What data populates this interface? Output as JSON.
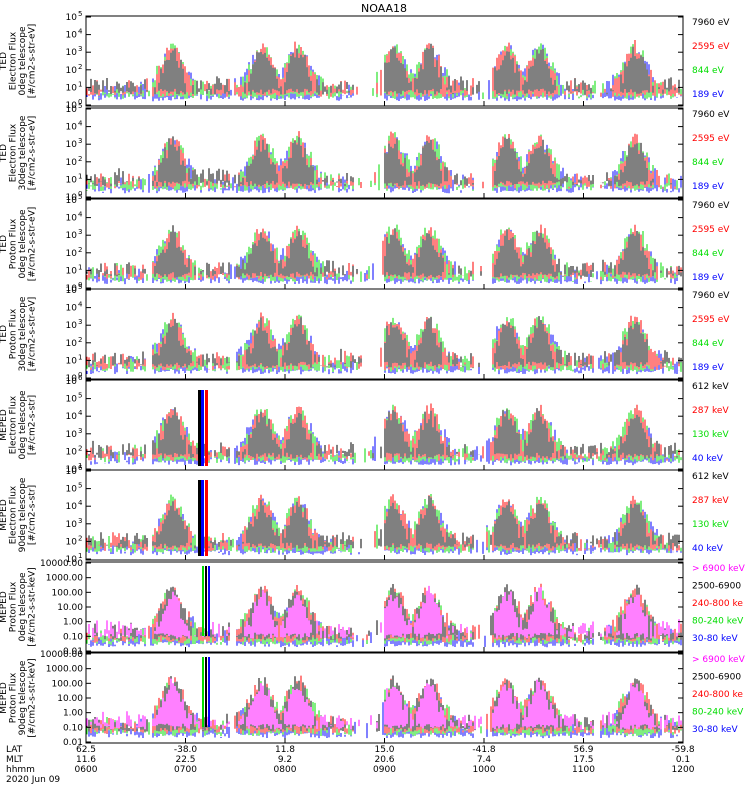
{
  "title": "NOAA18",
  "colors": {
    "black": "#000000",
    "blue": "#0000ff",
    "red": "#ff0000",
    "green": "#00dd00",
    "magenta": "#ff00ff"
  },
  "x_axis": {
    "rows": [
      {
        "label": "LAT",
        "ticks": [
          "62.5",
          "-38.0",
          "11.8",
          "15.0",
          "-41.8",
          "56.9",
          "-59.8"
        ]
      },
      {
        "label": "MLT",
        "ticks": [
          "11.6",
          "22.5",
          "9.2",
          "20.6",
          "7.4",
          "17.5",
          "0.1"
        ]
      },
      {
        "label": "hhmm",
        "ticks": [
          "0600",
          "0700",
          "0800",
          "0900",
          "1000",
          "1100",
          "1200"
        ]
      }
    ],
    "date": "2020 Jun 09"
  },
  "chart_data": [
    {
      "type": "line",
      "ylabel": [
        "TED",
        "Electron Flux",
        "0deg telescope",
        "[#/cm2-s-str-eV]"
      ],
      "yscale": "log",
      "ylim": [
        1,
        100000
      ],
      "yticks": [
        "10",
        "10",
        "10",
        "10",
        "10",
        "10"
      ],
      "yexp": [
        "0",
        "1",
        "2",
        "3",
        "4",
        "5"
      ],
      "legend": [
        {
          "text": "7960 eV",
          "color": "#000000"
        },
        {
          "text": "2595 eV",
          "color": "#ff0000"
        },
        {
          "text": "844 eV",
          "color": "#00dd00"
        },
        {
          "text": "189 eV",
          "color": "#0000ff"
        }
      ]
    },
    {
      "type": "line",
      "ylabel": [
        "TED",
        "Electron Flux",
        "30deg telescope",
        "[#/cm2-s-str-eV]"
      ],
      "yscale": "log",
      "ylim": [
        1,
        100000
      ],
      "yticks": [
        "10",
        "10",
        "10",
        "10",
        "10",
        "10"
      ],
      "yexp": [
        "0",
        "1",
        "2",
        "3",
        "4",
        "5"
      ],
      "legend": [
        {
          "text": "7960 eV",
          "color": "#000000"
        },
        {
          "text": "2595 eV",
          "color": "#ff0000"
        },
        {
          "text": "844 eV",
          "color": "#00dd00"
        },
        {
          "text": "189 eV",
          "color": "#0000ff"
        }
      ]
    },
    {
      "type": "line",
      "ylabel": [
        "TED",
        "Proton Flux",
        "0deg telescope",
        "[#/cm2-s-str-eV]"
      ],
      "yscale": "log",
      "ylim": [
        1,
        100000
      ],
      "yticks": [
        "10",
        "10",
        "10",
        "10",
        "10",
        "10"
      ],
      "yexp": [
        "0",
        "1",
        "2",
        "3",
        "4",
        "5"
      ],
      "legend": [
        {
          "text": "7960 eV",
          "color": "#000000"
        },
        {
          "text": "2595 eV",
          "color": "#ff0000"
        },
        {
          "text": "844 eV",
          "color": "#00dd00"
        },
        {
          "text": "189 eV",
          "color": "#0000ff"
        }
      ]
    },
    {
      "type": "line",
      "ylabel": [
        "TED",
        "Proton Flux",
        "30deg telescope",
        "[#/cm2-s-str-eV]"
      ],
      "yscale": "log",
      "ylim": [
        1,
        100000
      ],
      "yticks": [
        "10",
        "10",
        "10",
        "10",
        "10",
        "10"
      ],
      "yexp": [
        "0",
        "1",
        "2",
        "3",
        "4",
        "5"
      ],
      "legend": [
        {
          "text": "7960 eV",
          "color": "#000000"
        },
        {
          "text": "2595 eV",
          "color": "#ff0000"
        },
        {
          "text": "844 eV",
          "color": "#00dd00"
        },
        {
          "text": "189 eV",
          "color": "#0000ff"
        }
      ]
    },
    {
      "type": "line",
      "ylabel": [
        "MEPED",
        "Electron Flux",
        "0deg telescope",
        "[#/cm2-s-str]"
      ],
      "yscale": "log",
      "ylim": [
        10,
        1000000
      ],
      "yticks": [
        "10",
        "10",
        "10",
        "10",
        "10",
        "10"
      ],
      "yexp": [
        "1",
        "2",
        "3",
        "4",
        "5",
        "6"
      ],
      "legend": [
        {
          "text": "612 keV",
          "color": "#000000"
        },
        {
          "text": "287 keV",
          "color": "#ff0000"
        },
        {
          "text": "130 keV",
          "color": "#00dd00"
        },
        {
          "text": "40 keV",
          "color": "#0000ff"
        }
      ]
    },
    {
      "type": "line",
      "ylabel": [
        "MEPED",
        "Electron Flux",
        "90deg telescope",
        "[#/cm2-s-str]"
      ],
      "yscale": "log",
      "ylim": [
        10,
        1000000
      ],
      "yticks": [
        "10",
        "10",
        "10",
        "10",
        "10",
        "10"
      ],
      "yexp": [
        "1",
        "2",
        "3",
        "4",
        "5",
        "6"
      ],
      "legend": [
        {
          "text": "612 keV",
          "color": "#000000"
        },
        {
          "text": "287 keV",
          "color": "#ff0000"
        },
        {
          "text": "130 keV",
          "color": "#00dd00"
        },
        {
          "text": "40 keV",
          "color": "#0000ff"
        }
      ]
    },
    {
      "type": "line",
      "ylabel": [
        "MEPED",
        "Proton Flux",
        "0deg telescope",
        "[#/cm2-s-str-keV]"
      ],
      "yscale": "log",
      "ylim": [
        0.01,
        10000
      ],
      "yticks": [
        "10000.00",
        "1000.00",
        "100.00",
        "10.00",
        "1.00",
        "0.10",
        "0.01"
      ],
      "yexp": [],
      "legend": [
        {
          "text": "> 6900 keV",
          "color": "#ff00ff"
        },
        {
          "text": "2500-6900",
          "color": "#000000"
        },
        {
          "text": "240-800 ke",
          "color": "#ff0000"
        },
        {
          "text": "80-240 keV",
          "color": "#00dd00"
        },
        {
          "text": "30-80 keV",
          "color": "#0000ff"
        }
      ]
    },
    {
      "type": "line",
      "ylabel": [
        "MEPED",
        "Proton Flux",
        "90deg telescope",
        "[#/cm2-s-str-keV]"
      ],
      "yscale": "log",
      "ylim": [
        0.01,
        10000
      ],
      "yticks": [
        "10000.00",
        "1000.00",
        "100.00",
        "10.00",
        "1.00",
        "0.10",
        "0.01"
      ],
      "yexp": [],
      "legend": [
        {
          "text": "> 6900 keV",
          "color": "#ff00ff"
        },
        {
          "text": "2500-6900",
          "color": "#000000"
        },
        {
          "text": "240-800 ke",
          "color": "#ff0000"
        },
        {
          "text": "80-240 keV",
          "color": "#00dd00"
        },
        {
          "text": "30-80 keV",
          "color": "#0000ff"
        }
      ]
    }
  ]
}
